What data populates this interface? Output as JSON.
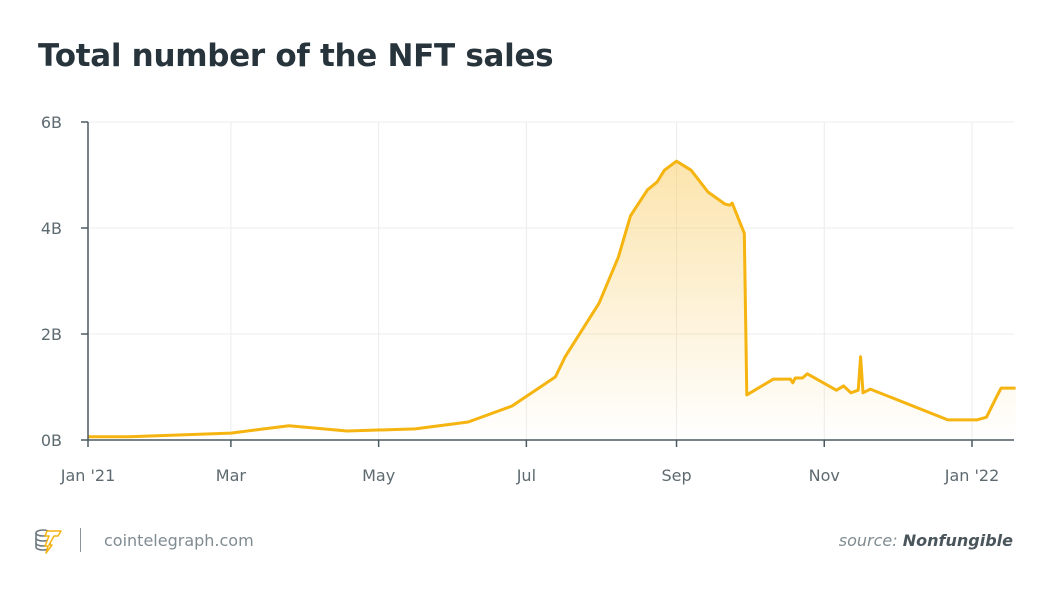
{
  "chart_data": {
    "type": "area",
    "title": "Total number of the NFT sales",
    "xlabel": "",
    "ylabel": "",
    "x_ticks": [
      "Jan '21",
      "Mar",
      "May",
      "Jul",
      "Sep",
      "Nov",
      "Jan '22"
    ],
    "x_tick_dates": [
      "2021-01-01",
      "2021-03-01",
      "2021-05-01",
      "2021-07-01",
      "2021-09-01",
      "2021-11-01",
      "2022-01-01"
    ],
    "y_ticks": [
      "0B",
      "2B",
      "4B",
      "6B"
    ],
    "y_tick_values": [
      0,
      2,
      4,
      6
    ],
    "y_unit": "billions",
    "ylim": [
      0,
      6
    ],
    "xlim": [
      "2021-01-01",
      "2022-01-19"
    ],
    "grid": true,
    "line_color": "#f5b40f",
    "fill_color": "#f8c95a",
    "points": [
      [
        "2021-01-01",
        0.06
      ],
      [
        "2021-01-18",
        0.06
      ],
      [
        "2021-03-01",
        0.13
      ],
      [
        "2021-03-25",
        0.27
      ],
      [
        "2021-04-18",
        0.17
      ],
      [
        "2021-05-16",
        0.21
      ],
      [
        "2021-06-07",
        0.34
      ],
      [
        "2021-06-25",
        0.64
      ],
      [
        "2021-07-13",
        1.19
      ],
      [
        "2021-07-17",
        1.57
      ],
      [
        "2021-07-31",
        2.58
      ],
      [
        "2021-08-08",
        3.45
      ],
      [
        "2021-08-13",
        4.23
      ],
      [
        "2021-08-20",
        4.72
      ],
      [
        "2021-08-24",
        4.87
      ],
      [
        "2021-08-27",
        5.09
      ],
      [
        "2021-09-01",
        5.26
      ],
      [
        "2021-09-07",
        5.09
      ],
      [
        "2021-09-14",
        4.68
      ],
      [
        "2021-09-21",
        4.45
      ],
      [
        "2021-09-23",
        4.43
      ],
      [
        "2021-09-24",
        4.47
      ],
      [
        "2021-09-29",
        3.9
      ],
      [
        "2021-09-30",
        0.85
      ],
      [
        "2021-10-11",
        1.15
      ],
      [
        "2021-10-18",
        1.15
      ],
      [
        "2021-10-19",
        1.08
      ],
      [
        "2021-10-20",
        1.17
      ],
      [
        "2021-10-23",
        1.17
      ],
      [
        "2021-10-25",
        1.25
      ],
      [
        "2021-11-06",
        0.94
      ],
      [
        "2021-11-09",
        1.02
      ],
      [
        "2021-11-12",
        0.89
      ],
      [
        "2021-11-15",
        0.94
      ],
      [
        "2021-11-16",
        1.57
      ],
      [
        "2021-11-17",
        0.89
      ],
      [
        "2021-11-20",
        0.96
      ],
      [
        "2021-12-22",
        0.38
      ],
      [
        "2022-01-03",
        0.38
      ],
      [
        "2022-01-07",
        0.43
      ],
      [
        "2022-01-11",
        0.8
      ],
      [
        "2022-01-13",
        0.98
      ],
      [
        "2022-01-19",
        0.98
      ]
    ]
  },
  "footer": {
    "brand": "cointelegraph.com",
    "source_prefix": "source:",
    "source_name": "Nonfungible"
  }
}
